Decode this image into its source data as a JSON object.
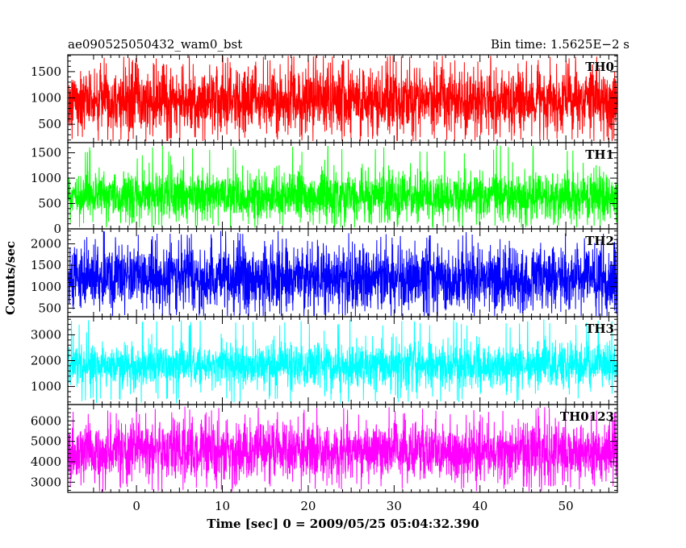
{
  "header": {
    "left_title": "ae090525050432_wam0_bst",
    "right_title": "Bin time: 1.5625E−2 s"
  },
  "axes": {
    "xlabel": "Time [sec] 0 = 2009/05/25 05:04:32.390",
    "ylabel": "Counts/sec"
  },
  "chart_data": {
    "type": "line",
    "x_range": [
      -8,
      56
    ],
    "x_ticks": [
      0,
      10,
      20,
      30,
      40,
      50
    ],
    "bin_time_s": 0.015625,
    "panels": [
      {
        "name": "TH0",
        "color": "#ff0000",
        "ylim": [
          150,
          1820
        ],
        "yticks": [
          500,
          1000,
          1500
        ],
        "mean": 950,
        "spread": 300,
        "min": 180,
        "max": 1800
      },
      {
        "name": "TH1",
        "color": "#00ff00",
        "ylim": [
          0,
          1700
        ],
        "yticks": [
          0,
          500,
          1000,
          1500
        ],
        "mean": 650,
        "spread": 230,
        "min": 30,
        "max": 1650
      },
      {
        "name": "TH2",
        "color": "#0000ff",
        "ylim": [
          300,
          2350
        ],
        "yticks": [
          500,
          1000,
          1500,
          2000
        ],
        "mean": 1200,
        "spread": 370,
        "min": 320,
        "max": 2300
      },
      {
        "name": "TH3",
        "color": "#00ffff",
        "ylim": [
          300,
          3700
        ],
        "yticks": [
          1000,
          2000,
          3000
        ],
        "mean": 1800,
        "spread": 420,
        "min": 350,
        "max": 3600
      },
      {
        "name": "TH0123",
        "color": "#ff00ff",
        "ylim": [
          2500,
          6800
        ],
        "yticks": [
          3000,
          4000,
          5000,
          6000
        ],
        "mean": 4500,
        "spread": 700,
        "min": 2550,
        "max": 6700
      }
    ]
  }
}
